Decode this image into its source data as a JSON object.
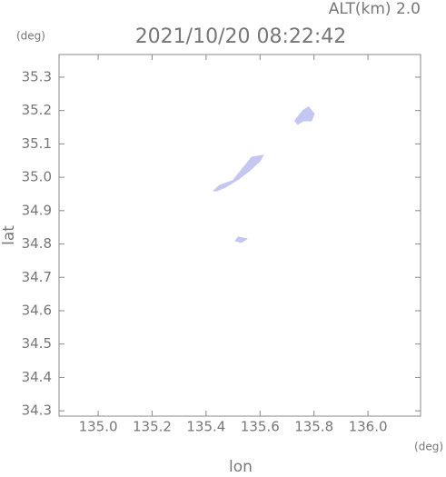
{
  "chart_data": {
    "type": "polygon",
    "title": "2021/10/20 08:22:42",
    "altitude_label": "ALT(km) 2.0",
    "x_label": "lon",
    "y_label": "lat",
    "x_unit": "(deg)",
    "y_unit": "(deg)",
    "xlim": [
      134.855,
      136.195
    ],
    "ylim": [
      34.284,
      35.368
    ],
    "xticks": [
      {
        "value": 135.0,
        "label": "135.0"
      },
      135.2,
      135.4,
      135.6,
      135.8,
      {
        "value": 136.0,
        "label": "136.0"
      }
    ],
    "yticks": [
      34.3,
      34.4,
      34.5,
      34.6,
      34.7,
      34.8,
      34.9,
      {
        "value": 35.0,
        "label": "35.0"
      },
      35.1,
      35.2,
      35.3
    ],
    "color": "#c6c6f2",
    "echoes": [
      {
        "x": [
          135.43,
          135.45,
          135.5,
          135.54,
          135.57,
          135.61,
          135.6,
          135.56,
          135.52,
          135.47,
          135.44
        ],
        "y": [
          34.96,
          34.975,
          34.99,
          35.03,
          35.06,
          35.065,
          35.05,
          35.02,
          34.995,
          34.97,
          34.96
        ]
      },
      {
        "x": [
          135.73,
          135.76,
          135.78,
          135.8,
          135.79,
          135.76,
          135.74
        ],
        "y": [
          35.17,
          35.2,
          35.21,
          35.19,
          35.17,
          35.17,
          35.16
        ]
      },
      {
        "x": [
          135.51,
          135.52,
          135.55,
          135.53
        ],
        "y": [
          34.81,
          34.82,
          34.815,
          34.805
        ]
      }
    ]
  }
}
